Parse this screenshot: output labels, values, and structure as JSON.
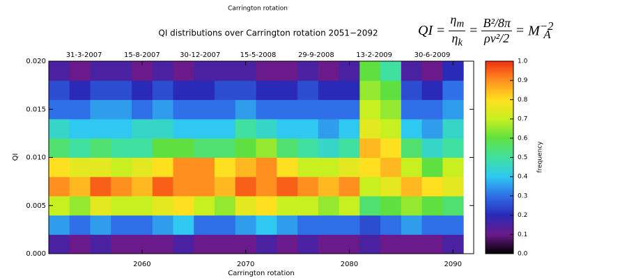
{
  "chart_data": {
    "type": "heatmap",
    "fragment_label": "Carrington rotation",
    "title": "QI distributions over Carrington rotation 2051−2092",
    "xlabel": "Carrington rotation",
    "ylabel": "QI",
    "colorbar_label": "frequency",
    "xlim": [
      2051,
      2092
    ],
    "xticks": [
      2060,
      2070,
      2080,
      2090
    ],
    "ylim": [
      0,
      0.02
    ],
    "yticks": [
      {
        "value": 0,
        "label": "0.000"
      },
      0.005,
      {
        "value": 0.01,
        "label": "0.010"
      },
      0.015,
      {
        "value": 0.02,
        "label": "0.020"
      }
    ],
    "top_ticks": [
      {
        "value": 2054.4,
        "label": "31-3-2007"
      },
      {
        "value": 2060,
        "label": "15-8-2007"
      },
      {
        "value": 2065.6,
        "label": "30-12-2007"
      },
      {
        "value": 2071.2,
        "label": "15-5-2008"
      },
      {
        "value": 2076.8,
        "label": "29-9-2008"
      },
      {
        "value": 2082.4,
        "label": "13-2-2009"
      },
      {
        "value": 2088,
        "label": "30-6-2009"
      }
    ],
    "zlim": [
      0,
      1
    ],
    "zticks": [
      {
        "value": 0,
        "label": "0.0"
      },
      0.1,
      0.2,
      0.3,
      0.4,
      0.5,
      0.6,
      0.7,
      0.8,
      0.9,
      {
        "value": 1,
        "label": "1.0"
      }
    ],
    "colorscale": [
      "#000000",
      "#6a1a8a",
      "#2a2ab8",
      "#2f6fe8",
      "#2ec8f0",
      "#40e0a0",
      "#60e040",
      "#c8f020",
      "#ffe020",
      "#ff9020",
      "#f03010"
    ],
    "x": [
      2052,
      2054,
      2056,
      2058,
      2060,
      2062,
      2064,
      2066,
      2068,
      2070,
      2072,
      2074,
      2076,
      2078,
      2080,
      2082,
      2084,
      2086,
      2088,
      2090
    ],
    "y": [
      0.001,
      0.003,
      0.005,
      0.007,
      0.009,
      0.011,
      0.013,
      0.015,
      0.017,
      0.019
    ],
    "z": [
      [
        0.15,
        0.1,
        0.15,
        0.1,
        0.1,
        0.1,
        0.15,
        0.1,
        0.1,
        0.1,
        0.15,
        0.1,
        0.15,
        0.1,
        0.1,
        0.15,
        0.1,
        0.1,
        0.1,
        0.15
      ],
      [
        0.35,
        0.3,
        0.35,
        0.3,
        0.3,
        0.35,
        0.4,
        0.3,
        0.3,
        0.35,
        0.4,
        0.35,
        0.3,
        0.3,
        0.3,
        0.25,
        0.3,
        0.35,
        0.3,
        0.3
      ],
      [
        0.7,
        0.65,
        0.75,
        0.7,
        0.7,
        0.75,
        0.8,
        0.7,
        0.65,
        0.75,
        0.8,
        0.7,
        0.7,
        0.65,
        0.7,
        0.55,
        0.6,
        0.65,
        0.6,
        0.55
      ],
      [
        0.9,
        0.85,
        0.95,
        0.9,
        0.85,
        0.95,
        0.9,
        0.9,
        0.85,
        0.95,
        0.9,
        0.95,
        0.9,
        0.85,
        0.9,
        0.7,
        0.75,
        0.85,
        0.8,
        0.75
      ],
      [
        0.8,
        0.75,
        0.75,
        0.7,
        0.75,
        0.8,
        0.9,
        0.9,
        0.8,
        0.85,
        0.9,
        0.8,
        0.7,
        0.7,
        0.75,
        0.8,
        0.85,
        0.7,
        0.6,
        0.7
      ],
      [
        0.55,
        0.5,
        0.55,
        0.5,
        0.5,
        0.6,
        0.6,
        0.55,
        0.55,
        0.6,
        0.65,
        0.55,
        0.5,
        0.45,
        0.5,
        0.85,
        0.8,
        0.55,
        0.45,
        0.5
      ],
      [
        0.45,
        0.4,
        0.4,
        0.4,
        0.45,
        0.45,
        0.4,
        0.4,
        0.4,
        0.5,
        0.45,
        0.4,
        0.4,
        0.35,
        0.4,
        0.75,
        0.7,
        0.4,
        0.35,
        0.45
      ],
      [
        0.3,
        0.3,
        0.35,
        0.35,
        0.3,
        0.35,
        0.3,
        0.3,
        0.3,
        0.35,
        0.3,
        0.3,
        0.3,
        0.3,
        0.3,
        0.7,
        0.65,
        0.3,
        0.3,
        0.35
      ],
      [
        0.25,
        0.2,
        0.25,
        0.25,
        0.2,
        0.25,
        0.2,
        0.2,
        0.25,
        0.25,
        0.2,
        0.2,
        0.25,
        0.2,
        0.2,
        0.65,
        0.6,
        0.25,
        0.2,
        0.3
      ],
      [
        0.15,
        0.1,
        0.15,
        0.15,
        0.1,
        0.15,
        0.1,
        0.15,
        0.15,
        0.15,
        0.1,
        0.1,
        0.15,
        0.1,
        0.15,
        0.6,
        0.5,
        0.15,
        0.1,
        0.2
      ]
    ]
  },
  "formula": {
    "lhs": "QI",
    "equals": "=",
    "f1_num": "η",
    "f1_num_sub": "m",
    "f1_den": "η",
    "f1_den_sub": "k",
    "f2_num": "B²/8π",
    "f2_den": "ρv²/2",
    "rhs": "M",
    "rhs_sup": "−2",
    "rhs_sub": "A"
  }
}
